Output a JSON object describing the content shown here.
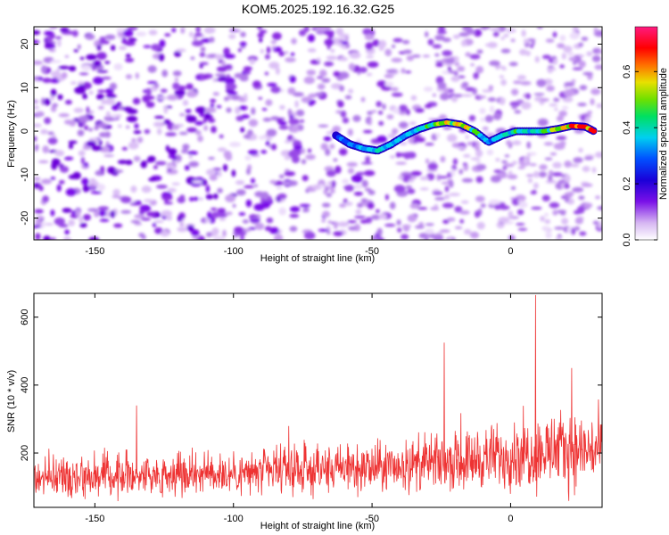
{
  "title": "KOM5.2025.192.16.32.G25",
  "chart_data": [
    {
      "type": "heatmap",
      "name": "spectrogram",
      "xlabel": "Height of straight line (km)",
      "ylabel": "Frequency (Hz)",
      "xlim": [
        -172,
        33
      ],
      "ylim": [
        -25,
        24
      ],
      "xticks": [
        -150,
        -100,
        -50,
        0
      ],
      "yticks": [
        -20,
        -10,
        0,
        10,
        20
      ],
      "colorbar": {
        "label": "Normalized spectral amplitude",
        "range": [
          0,
          0.76
        ],
        "ticks": [
          "0.0",
          "0.2",
          "0.4",
          "0.6"
        ],
        "colors": [
          "#ffffff",
          "#c58ae8",
          "#7a10e8",
          "#1a00d8",
          "#0050ff",
          "#00d0f0",
          "#00e060",
          "#70e000",
          "#e8e000",
          "#ff7000",
          "#ff0000",
          "#ff1a80"
        ]
      },
      "ridge": {
        "description_points_x": [
          -63,
          -58,
          -53,
          -48,
          -43,
          -38,
          -33,
          -28,
          -23,
          -18,
          -13,
          -8,
          -3,
          2,
          7,
          12,
          17,
          22,
          27,
          30
        ],
        "frequency_hz": [
          -1,
          -3,
          -4,
          -4.5,
          -3,
          -1,
          0.5,
          1.5,
          2,
          1.5,
          0,
          -2.5,
          -1,
          0,
          0,
          0,
          0.5,
          1.2,
          1,
          0
        ],
        "amplitude": [
          0.15,
          0.2,
          0.25,
          0.3,
          0.25,
          0.25,
          0.3,
          0.35,
          0.45,
          0.5,
          0.4,
          0.2,
          0.3,
          0.35,
          0.3,
          0.35,
          0.45,
          0.55,
          0.7,
          0.6
        ]
      }
    },
    {
      "type": "line",
      "name": "snr",
      "xlabel": "Height of straight line (km)",
      "ylabel": "SNR (10 * v/v)",
      "xlim": [
        -172,
        33
      ],
      "ylim": [
        40,
        670
      ],
      "xticks": [
        -150,
        -100,
        -50,
        0
      ],
      "yticks": [
        200,
        400,
        600
      ],
      "color": "#ee3333",
      "trend": {
        "x": [
          -172,
          -150,
          -100,
          -50,
          -20,
          0,
          10,
          33
        ],
        "mean": [
          130,
          135,
          140,
          155,
          175,
          195,
          205,
          210
        ],
        "spread": [
          70,
          75,
          80,
          90,
          100,
          120,
          140,
          130
        ]
      },
      "peaks": [
        {
          "x": 9,
          "y": 665
        },
        {
          "x": -24,
          "y": 525
        },
        {
          "x": 22,
          "y": 450
        },
        {
          "x": -135,
          "y": 340
        }
      ]
    }
  ]
}
